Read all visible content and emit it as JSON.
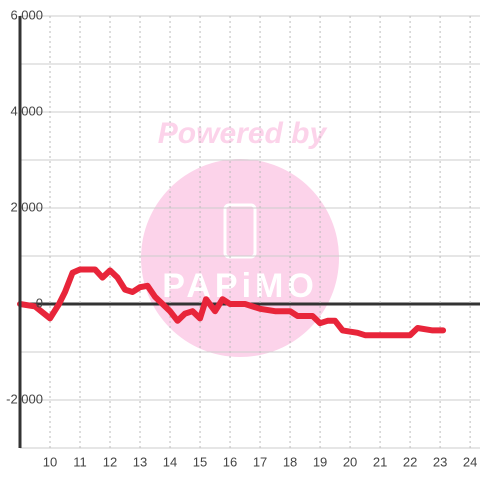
{
  "chart_data": {
    "type": "line",
    "watermark": "Powered by",
    "logo_text": "PAPiMO",
    "x": [
      9.0,
      9.5,
      10.0,
      10.3,
      10.5,
      10.75,
      11.0,
      11.5,
      11.75,
      12.0,
      12.25,
      12.5,
      12.75,
      13.0,
      13.25,
      13.5,
      14.0,
      14.25,
      14.5,
      14.75,
      15.0,
      15.2,
      15.5,
      15.75,
      16.0,
      16.5,
      17.0,
      17.5,
      18.0,
      18.25,
      18.75,
      19.0,
      19.25,
      19.5,
      19.75,
      20.25,
      20.5,
      21.0,
      21.5,
      22.0,
      22.25,
      22.75,
      23.1
    ],
    "series": [
      {
        "color": "#e8253a",
        "values": [
          0,
          -50,
          -300,
          0,
          250,
          650,
          720,
          720,
          550,
          700,
          550,
          300,
          250,
          350,
          380,
          150,
          -150,
          -350,
          -200,
          -150,
          -300,
          100,
          -150,
          100,
          0,
          0,
          -100,
          -150,
          -150,
          -250,
          -250,
          -400,
          -350,
          -350,
          -550,
          -600,
          -650,
          -650,
          -650,
          -650,
          -500,
          -550,
          -550
        ]
      }
    ],
    "xlim": [
      9,
      24.33
    ],
    "xticks": [
      10,
      11,
      12,
      13,
      14,
      15,
      16,
      17,
      18,
      19,
      20,
      21,
      22,
      23,
      24
    ],
    "ylim": [
      -3000,
      6000
    ],
    "yticks": [
      {
        "value": -2000,
        "label": "-2,000"
      },
      0,
      {
        "value": 2000,
        "label": "2,000"
      },
      {
        "value": 4000,
        "label": "4,000"
      },
      {
        "value": 6000,
        "label": "6,000"
      }
    ],
    "minor_yticks": [
      -3000,
      -1000,
      1000,
      3000,
      5000
    ],
    "grid": true
  }
}
